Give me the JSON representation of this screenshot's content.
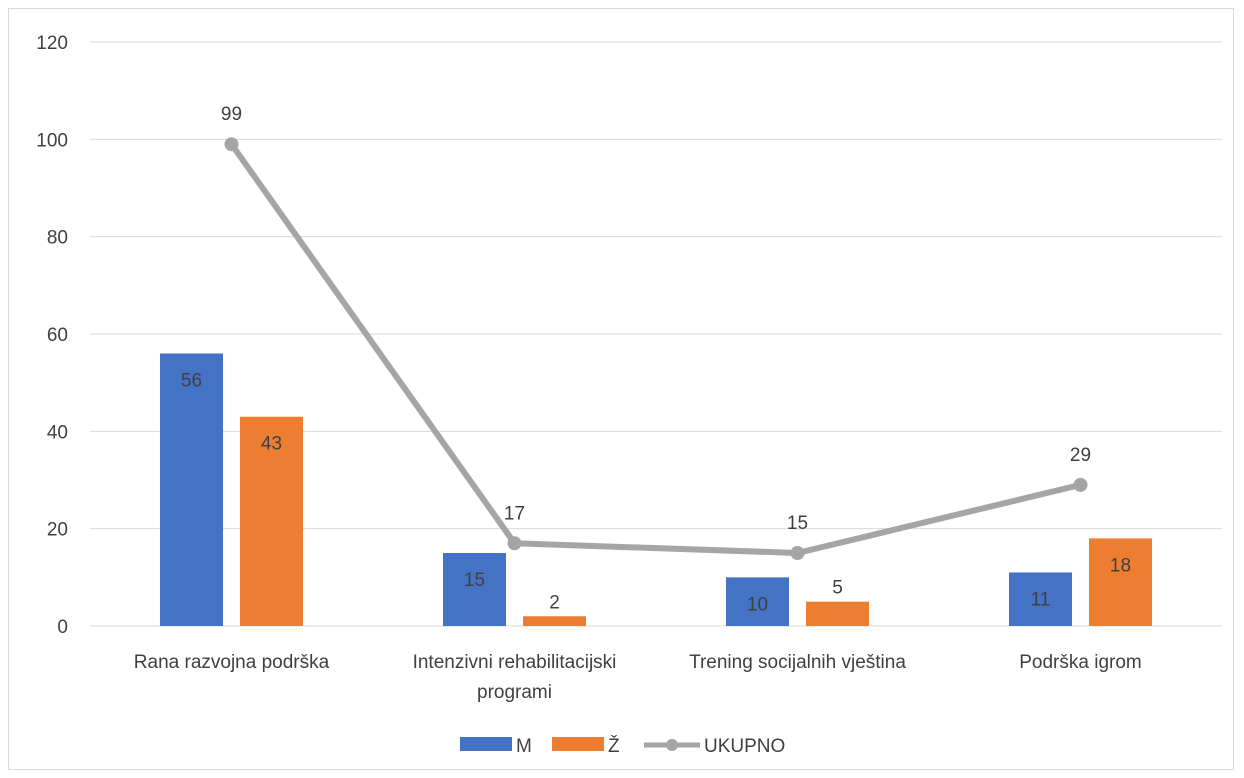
{
  "chart_data": {
    "type": "bar",
    "categories": [
      [
        "Rana razvojna podrška"
      ],
      [
        "Intenzivni rehabilitacijski",
        "programi"
      ],
      [
        "Trening socijalnih vještina"
      ],
      [
        "Podrška igrom"
      ]
    ],
    "series": [
      {
        "name": "M",
        "type": "bar",
        "values": [
          56,
          15,
          10,
          11
        ],
        "color": "#4472C4",
        "label_color": "#404040"
      },
      {
        "name": "Ž",
        "type": "bar",
        "values": [
          43,
          2,
          5,
          18
        ],
        "color": "#ED7D31",
        "label_color": "#404040"
      },
      {
        "name": "UKUPNO",
        "type": "line",
        "values": [
          99,
          17,
          15,
          29
        ],
        "color": "#A5A5A5",
        "label_color": "#404040"
      }
    ],
    "ylim": [
      0,
      120
    ],
    "yticks": [
      0,
      20,
      40,
      60,
      80,
      100,
      120
    ],
    "grid": true,
    "legend": "bottom"
  }
}
